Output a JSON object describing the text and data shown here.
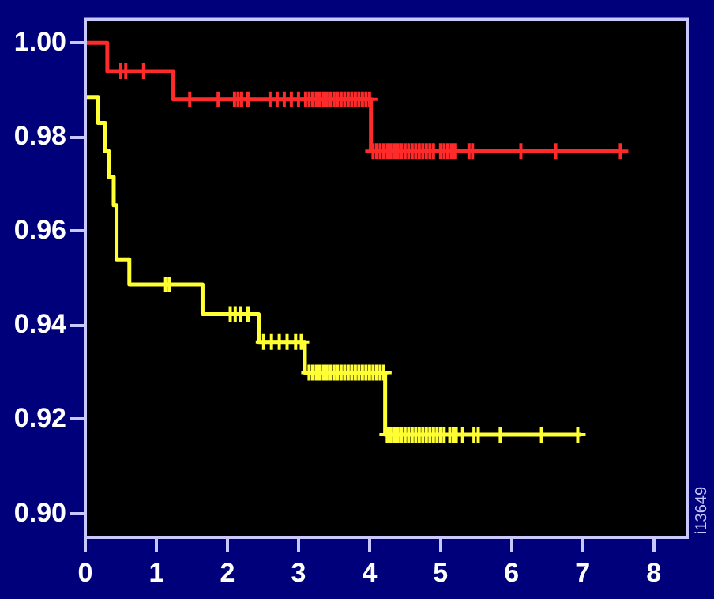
{
  "chart_data": {
    "type": "step",
    "xlim": [
      0,
      8.47
    ],
    "ylim": [
      0.895,
      1.005
    ],
    "xticks": [
      0,
      1,
      2,
      3,
      4,
      5,
      6,
      7,
      8
    ],
    "yticks": [
      {
        "value": 0.9,
        "label": "0.90"
      },
      {
        "value": 0.92,
        "label": "0.92"
      },
      {
        "value": 0.94,
        "label": "0.94"
      },
      {
        "value": 0.96,
        "label": "0.96"
      },
      {
        "value": 0.98,
        "label": "0.98"
      },
      {
        "value": 1.0,
        "label": "1.00"
      }
    ],
    "grid": false,
    "legend": false,
    "marker": "none",
    "line_style": "solid",
    "annotations": [
      "i13649"
    ],
    "series": [
      {
        "color": "#ff2a2a",
        "x": [
          0,
          0.31,
          1.24,
          4.02,
          7.53
        ],
        "values": [
          1.0,
          0.994,
          0.988,
          0.977,
          0.977
        ]
      },
      {
        "color": "#ffff33",
        "x": [
          0,
          0.18,
          0.28,
          0.33,
          0.4,
          0.44,
          0.62,
          1.65,
          2.44,
          3.09,
          4.22,
          6.98
        ],
        "values": [
          0.9885,
          0.983,
          0.977,
          0.9715,
          0.9655,
          0.954,
          0.9487,
          0.9424,
          0.9365,
          0.93,
          0.9168,
          0.9168
        ]
      },
      {
        "type": "scatter",
        "marker": "cross",
        "color": "#ff2a2a",
        "x": [
          0.5,
          0.57,
          0.82,
          1.47,
          1.87,
          2.1,
          2.15,
          2.2,
          2.29,
          2.6,
          2.7,
          2.8,
          2.9,
          3.0,
          3.1,
          3.15,
          3.2,
          3.25,
          3.3,
          3.35,
          3.4,
          3.45,
          3.5,
          3.55,
          3.6,
          3.65,
          3.7,
          3.75,
          3.8,
          3.85,
          3.9,
          3.95,
          4.0,
          4.05,
          4.1,
          4.15,
          4.2,
          4.25,
          4.3,
          4.35,
          4.4,
          4.45,
          4.5,
          4.55,
          4.6,
          4.65,
          4.7,
          4.75,
          4.8,
          4.85,
          4.9,
          5.0,
          5.05,
          5.1,
          5.15,
          5.2,
          5.4,
          5.45,
          6.13,
          6.62,
          7.53
        ],
        "values": [
          0.994,
          0.994,
          0.994,
          0.988,
          0.988,
          0.988,
          0.988,
          0.988,
          0.988,
          0.988,
          0.988,
          0.988,
          0.988,
          0.988,
          0.988,
          0.988,
          0.988,
          0.988,
          0.988,
          0.988,
          0.988,
          0.988,
          0.988,
          0.988,
          0.988,
          0.988,
          0.988,
          0.988,
          0.988,
          0.988,
          0.988,
          0.988,
          0.988,
          0.977,
          0.977,
          0.977,
          0.977,
          0.977,
          0.977,
          0.977,
          0.977,
          0.977,
          0.977,
          0.977,
          0.977,
          0.977,
          0.977,
          0.977,
          0.977,
          0.977,
          0.977,
          0.977,
          0.977,
          0.977,
          0.977,
          0.977,
          0.977,
          0.977,
          0.977,
          0.977,
          0.977
        ]
      },
      {
        "type": "scatter",
        "marker": "cross",
        "color": "#ffff33",
        "x": [
          1.13,
          1.18,
          2.04,
          2.11,
          2.18,
          2.29,
          2.51,
          2.62,
          2.73,
          2.84,
          2.96,
          3.04,
          3.15,
          3.2,
          3.25,
          3.3,
          3.35,
          3.4,
          3.45,
          3.5,
          3.55,
          3.6,
          3.65,
          3.7,
          3.75,
          3.8,
          3.85,
          3.9,
          3.95,
          4.0,
          4.05,
          4.1,
          4.15,
          4.2,
          4.25,
          4.3,
          4.35,
          4.4,
          4.45,
          4.5,
          4.55,
          4.6,
          4.65,
          4.7,
          4.75,
          4.8,
          4.85,
          4.9,
          4.95,
          5.0,
          5.05,
          5.13,
          5.18,
          5.22,
          5.31,
          5.47,
          5.53,
          5.84,
          6.42,
          6.93
        ],
        "values": [
          0.9487,
          0.9487,
          0.9424,
          0.9424,
          0.9424,
          0.9424,
          0.9365,
          0.9365,
          0.9365,
          0.9365,
          0.9365,
          0.9365,
          0.93,
          0.93,
          0.93,
          0.93,
          0.93,
          0.93,
          0.93,
          0.93,
          0.93,
          0.93,
          0.93,
          0.93,
          0.93,
          0.93,
          0.93,
          0.93,
          0.93,
          0.93,
          0.93,
          0.93,
          0.93,
          0.93,
          0.9168,
          0.9168,
          0.9168,
          0.9168,
          0.9168,
          0.9168,
          0.9168,
          0.9168,
          0.9168,
          0.9168,
          0.9168,
          0.9168,
          0.9168,
          0.9168,
          0.9168,
          0.9168,
          0.9168,
          0.9168,
          0.9168,
          0.9168,
          0.9168,
          0.9168,
          0.9168,
          0.9168,
          0.9168,
          0.9168
        ]
      }
    ]
  }
}
